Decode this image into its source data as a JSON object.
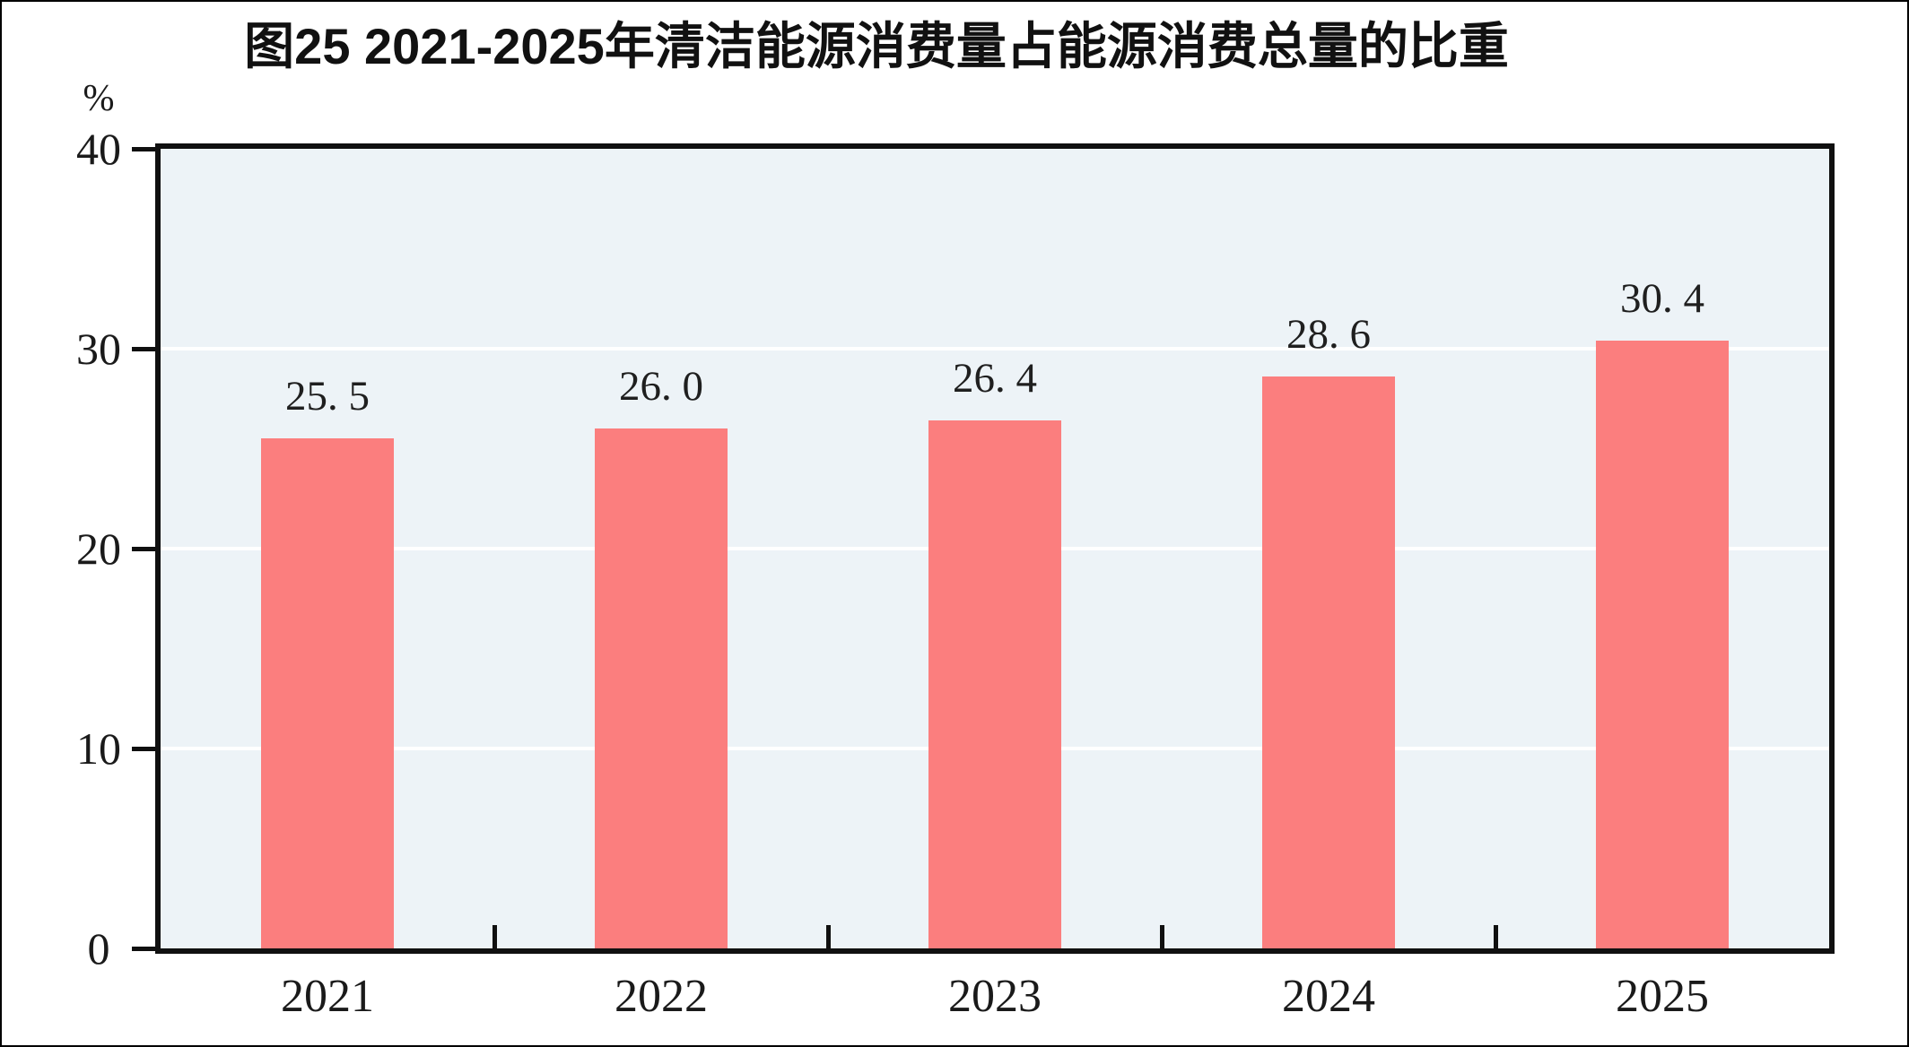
{
  "chart_data": {
    "type": "bar",
    "title": "图25  2021-2025年清洁能源消费量占能源消费总量的比重",
    "ylabel_unit": "%",
    "categories": [
      "2021",
      "2022",
      "2023",
      "2024",
      "2025"
    ],
    "values": [
      25.5,
      26.0,
      26.4,
      28.6,
      30.4
    ],
    "value_labels": [
      "25. 5",
      "26. 0",
      "26. 4",
      "28. 6",
      "30. 4"
    ],
    "ylim": [
      0,
      40
    ],
    "yticks": [
      0,
      10,
      20,
      30,
      40
    ],
    "grid": true,
    "legend_position": "none",
    "colors": {
      "bar": "#fb7e7e",
      "plot_background": "#edf3f7",
      "gridline": "#ffffff",
      "axis_frame": "#101010",
      "text": "#1a1a1a"
    }
  }
}
